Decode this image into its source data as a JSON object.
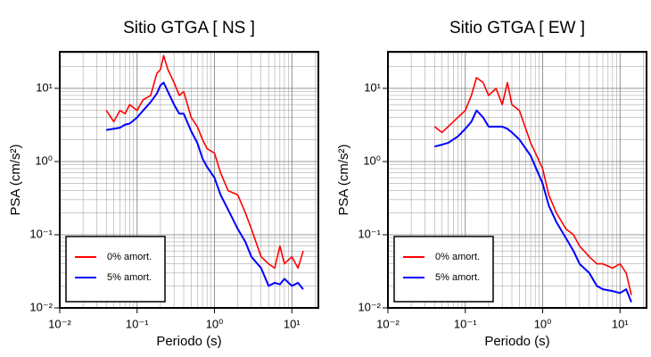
{
  "chart_data": [
    {
      "type": "line",
      "title": "Sitio GTGA [ NS ]",
      "xlabel": "Periodo (s)",
      "ylabel": "PSA (cm/s²)",
      "xlog": true,
      "ylog": true,
      "grid": true,
      "legend": "lower left",
      "xlim": [
        0.01,
        22
      ],
      "ylim": [
        0.01,
        31.6
      ],
      "xticks": [
        {
          "value": 0.01,
          "label": "10⁻²"
        },
        {
          "value": 0.1,
          "label": "10⁻¹"
        },
        {
          "value": 1,
          "label": "10⁰"
        },
        {
          "value": 10,
          "label": "10¹"
        }
      ],
      "yticks": [
        {
          "value": 0.01,
          "label": "10⁻²"
        },
        {
          "value": 0.1,
          "label": "10⁻¹"
        },
        {
          "value": 1,
          "label": "10⁰"
        },
        {
          "value": 10,
          "label": "10¹"
        }
      ],
      "x": [
        0.04,
        0.05,
        0.06,
        0.07,
        0.08,
        0.1,
        0.12,
        0.15,
        0.18,
        0.2,
        0.22,
        0.25,
        0.3,
        0.35,
        0.4,
        0.5,
        0.6,
        0.7,
        0.8,
        1.0,
        1.2,
        1.5,
        2,
        2.5,
        3,
        4,
        5,
        6,
        7,
        8,
        10,
        12,
        14
      ],
      "series": [
        {
          "name": "0% amort.",
          "color": "#ff0000",
          "values": [
            5,
            3.5,
            5,
            4.5,
            6,
            5,
            7,
            8,
            16,
            18,
            28,
            18,
            12,
            8,
            9,
            4,
            3,
            2,
            1.5,
            1.3,
            0.7,
            0.4,
            0.35,
            0.2,
            0.12,
            0.05,
            0.04,
            0.035,
            0.07,
            0.04,
            0.05,
            0.035,
            0.06
          ]
        },
        {
          "name": "5% amort.",
          "color": "#0000ff",
          "values": [
            2.7,
            2.8,
            2.9,
            3.2,
            3.3,
            4,
            5,
            6.5,
            8.5,
            11,
            12,
            9,
            6,
            4.5,
            4.5,
            2.6,
            1.8,
            1.1,
            0.85,
            0.6,
            0.35,
            0.22,
            0.12,
            0.08,
            0.05,
            0.035,
            0.02,
            0.022,
            0.021,
            0.025,
            0.02,
            0.022,
            0.018
          ]
        }
      ]
    },
    {
      "type": "line",
      "title": "Sitio GTGA [ EW ]",
      "xlabel": "Periodo (s)",
      "ylabel": "PSA (cm/s²)",
      "xlog": true,
      "ylog": true,
      "grid": true,
      "legend": "lower left",
      "xlim": [
        0.01,
        22
      ],
      "ylim": [
        0.01,
        31.6
      ],
      "xticks": [
        {
          "value": 0.01,
          "label": "10⁻²"
        },
        {
          "value": 0.1,
          "label": "10⁻¹"
        },
        {
          "value": 1,
          "label": "10⁰"
        },
        {
          "value": 10,
          "label": "10¹"
        }
      ],
      "yticks": [
        {
          "value": 0.01,
          "label": "10⁻²"
        },
        {
          "value": 0.1,
          "label": "10⁻¹"
        },
        {
          "value": 1,
          "label": "10⁰"
        },
        {
          "value": 10,
          "label": "10¹"
        }
      ],
      "x": [
        0.04,
        0.05,
        0.06,
        0.07,
        0.08,
        0.1,
        0.12,
        0.14,
        0.17,
        0.2,
        0.25,
        0.3,
        0.35,
        0.4,
        0.5,
        0.7,
        1.0,
        1.2,
        1.5,
        2,
        2.5,
        3,
        4,
        5,
        6,
        8,
        10,
        12,
        14
      ],
      "series": [
        {
          "name": "0% amort.",
          "color": "#ff0000",
          "values": [
            3,
            2.5,
            3,
            3.5,
            4,
            5,
            8,
            14,
            12,
            8,
            10,
            6,
            12,
            6,
            5,
            1.8,
            0.8,
            0.35,
            0.2,
            0.12,
            0.1,
            0.07,
            0.05,
            0.04,
            0.04,
            0.035,
            0.04,
            0.03,
            0.015
          ]
        },
        {
          "name": "5% amort.",
          "color": "#0000ff",
          "values": [
            1.6,
            1.7,
            1.8,
            2,
            2.2,
            2.8,
            3.5,
            5,
            4,
            3,
            3,
            3,
            2.8,
            2.5,
            2,
            1.2,
            0.5,
            0.25,
            0.15,
            0.09,
            0.06,
            0.04,
            0.03,
            0.02,
            0.018,
            0.017,
            0.016,
            0.018,
            0.012
          ]
        }
      ]
    }
  ]
}
